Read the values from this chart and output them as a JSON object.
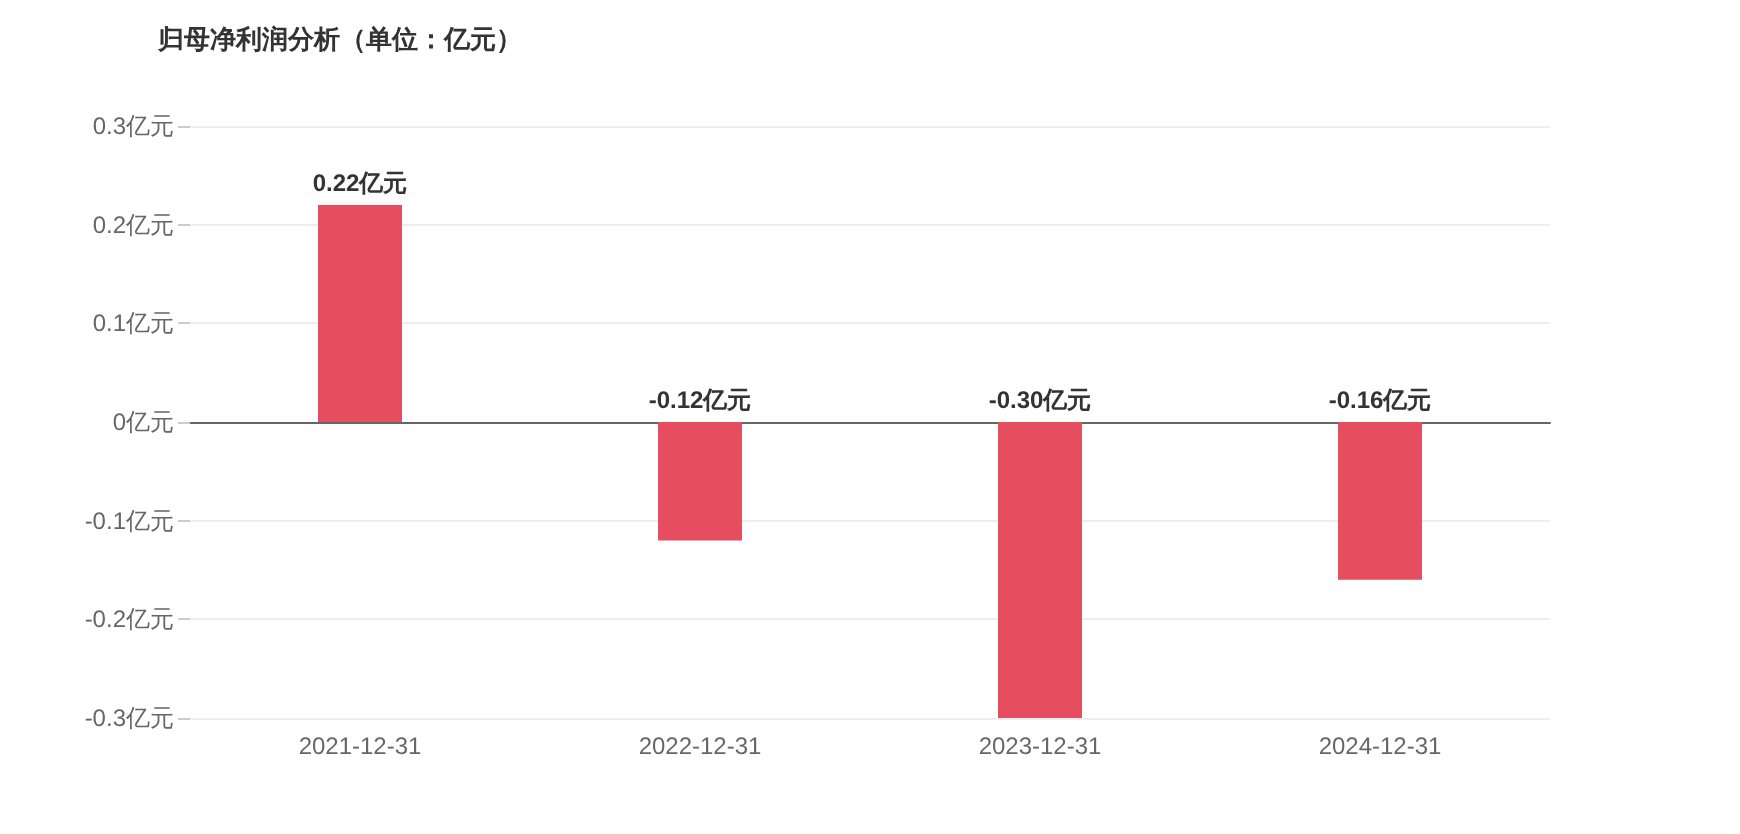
{
  "chart_data": {
    "type": "bar",
    "title": "归母净利润分析（单位：亿元）",
    "categories": [
      "2021-12-31",
      "2022-12-31",
      "2023-12-31",
      "2024-12-31"
    ],
    "values": [
      0.22,
      -0.12,
      -0.3,
      -0.16
    ],
    "value_labels": [
      "0.22亿元",
      "-0.12亿元",
      "-0.30亿元",
      "-0.16亿元"
    ],
    "color": "#e64e60",
    "ylim": [
      -0.3,
      0.3
    ],
    "yticks": [
      {
        "value": -0.3,
        "label": "-0.3亿元"
      },
      {
        "value": -0.2,
        "label": "-0.2亿元"
      },
      {
        "value": -0.1,
        "label": "-0.1亿元"
      },
      {
        "value": 0,
        "label": "0亿元"
      },
      {
        "value": 0.1,
        "label": "0.1亿元"
      },
      {
        "value": 0.2,
        "label": "0.2亿元"
      },
      {
        "value": 0.3,
        "label": "0.3亿元"
      }
    ],
    "grid": "y"
  }
}
